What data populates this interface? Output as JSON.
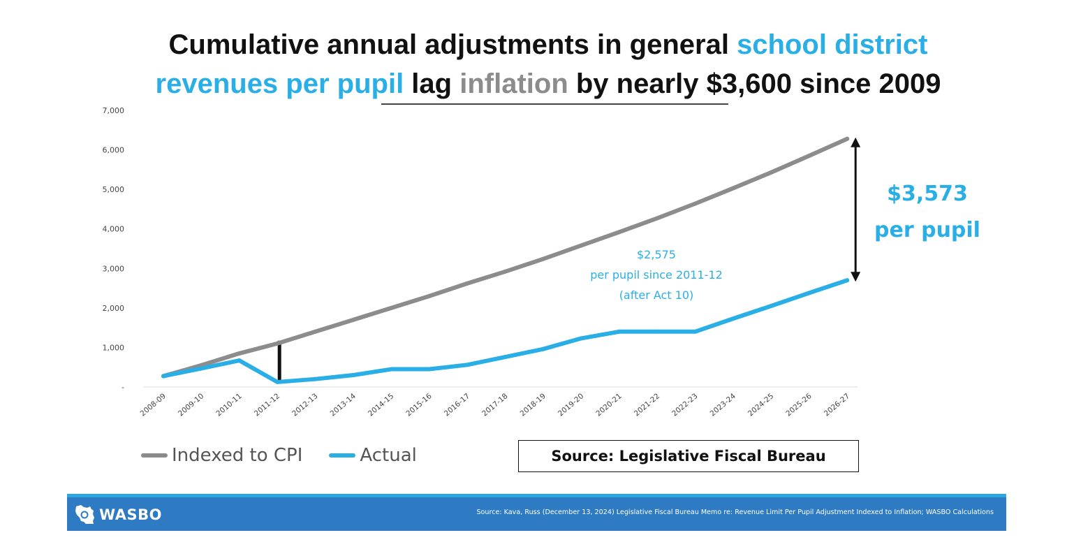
{
  "title": {
    "part1": "Cumulative annual adjustments in general ",
    "part2": "school district revenues per pupil",
    "part3": " lag ",
    "part4": "inflation",
    "part5": " by nearly $3,600 since 2009"
  },
  "colors": {
    "cpi": "#8c8c8c",
    "actual": "#29aee6",
    "title_text": "#111111",
    "footer_bg": "#2e7bc3",
    "footer_strip": "#2aa8e3"
  },
  "chart_data": {
    "type": "line",
    "title": "Cumulative annual adjustments in general school district revenues per pupil lag inflation by nearly $3,600 since 2009",
    "xlabel": "",
    "ylabel": "",
    "ylim": [
      0,
      7000
    ],
    "y_ticks": [
      {
        "value": 0,
        "label": "-"
      },
      {
        "value": 1000,
        "label": "1,000"
      },
      {
        "value": 2000,
        "label": "2,000"
      },
      {
        "value": 3000,
        "label": "3,000"
      },
      {
        "value": 4000,
        "label": "4,000"
      },
      {
        "value": 5000,
        "label": "5,000"
      },
      {
        "value": 6000,
        "label": "6,000"
      },
      {
        "value": 7000,
        "label": "7,000"
      }
    ],
    "grid": false,
    "categories": [
      "2008-09",
      "2009-10",
      "2010-11",
      "2011-12",
      "2012-13",
      "2013-14",
      "2014-15",
      "2015-16",
      "2016-17",
      "2017-18",
      "2018-19",
      "2019-20",
      "2020-21",
      "2021-22",
      "2022-23",
      "2023-24",
      "2024-25",
      "2025-26",
      "2026-27"
    ],
    "series": [
      {
        "name": "Indexed to CPI",
        "color": "#8c8c8c",
        "values": [
          275,
          550,
          850,
          1100,
          1400,
          1700,
          2000,
          2300,
          2620,
          2920,
          3240,
          3580,
          3920,
          4270,
          4640,
          5030,
          5430,
          5850,
          6280
        ]
      },
      {
        "name": "Actual",
        "color": "#29aee6",
        "values": [
          275,
          470,
          670,
          125,
          200,
          300,
          450,
          450,
          560,
          760,
          960,
          1230,
          1400,
          1400,
          1400,
          1730,
          2050,
          2380,
          2700
        ]
      }
    ],
    "legend": [
      {
        "label": "Indexed to CPI",
        "color": "#8c8c8c"
      },
      {
        "label": "Actual",
        "color": "#29aee6"
      }
    ],
    "legend_position": "bottom-left",
    "annotations": {
      "gap_value": "$3,573",
      "gap_unit": "per pupil",
      "note_line1": "$2,575",
      "note_line2": "per pupil since 2011-12",
      "note_line3": "(after Act 10)",
      "gap_bar_category": "2011-12"
    }
  },
  "source_box": "Source: Legislative Fiscal Bureau",
  "footer": {
    "logo_text": "WASBO",
    "source": "Source: Kava, Russ (December 13, 2024) Legislative Fiscal Bureau Memo re: Revenue Limit Per Pupil Adjustment Indexed to Inflation; WASBO Calculations"
  }
}
